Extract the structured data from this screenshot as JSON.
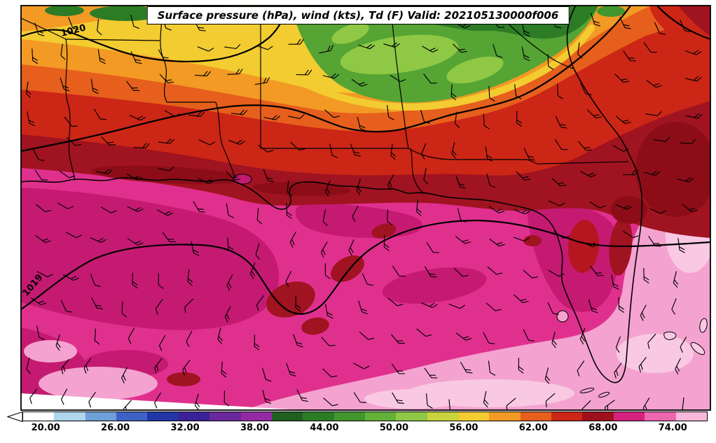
{
  "title": "Surface pressure (hPa), wind (kts), Td (F) Valid: 202105130000f006",
  "contour_labels": {
    "upper": "1020",
    "lower": "1019"
  },
  "colorbar": {
    "range": [
      18,
      77
    ],
    "ticks": [
      {
        "value": 20,
        "label": "20.00"
      },
      {
        "value": 26,
        "label": "26.00"
      },
      {
        "value": 32,
        "label": "32.00"
      },
      {
        "value": 38,
        "label": "38.00"
      },
      {
        "value": 44,
        "label": "44.00"
      },
      {
        "value": 50,
        "label": "50.00"
      },
      {
        "value": 56,
        "label": "56.00"
      },
      {
        "value": 62,
        "label": "62.00"
      },
      {
        "value": 68,
        "label": "68.00"
      },
      {
        "value": 74,
        "label": "74.00"
      }
    ],
    "colors": [
      "#ffffff",
      "#aed6ec",
      "#6f9fd8",
      "#3d62c4",
      "#2236a8",
      "#3a2396",
      "#69289c",
      "#9429a4",
      "#1f5f1f",
      "#2c7c26",
      "#42962e",
      "#63b138",
      "#8ec844",
      "#c9d33c",
      "#f2cc30",
      "#f29a24",
      "#e65f1c",
      "#cc2616",
      "#9e111c",
      "#d6217e",
      "#ee66ad",
      "#f9b8d9"
    ]
  },
  "chart_data": {
    "type": "heatmap",
    "title": "Surface pressure (hPa), wind (kts), Td (F) Valid: 202105130000f006",
    "field": "Dewpoint temperature Td (F), filled contours",
    "overlays": [
      "surface pressure isobars (hPa)",
      "wind barbs (kts)",
      "state borders and coastline"
    ],
    "region": "Southeastern United States and Gulf of Mexico (Louisiana, Mississippi, Alabama, Georgia, Florida)",
    "valid": "202105130000f006",
    "colorbar_ticks_F": [
      20,
      26,
      32,
      38,
      44,
      50,
      56,
      62,
      68,
      74
    ],
    "colorbar_range_F": [
      18,
      77
    ],
    "pressure_contour_labels_hPa": [
      1019,
      1020
    ],
    "field_summary": [
      {
        "area": "far north edge (TN valley, north GA/AL)",
        "td_F": "44-52",
        "color": "dark to mid green"
      },
      {
        "area": "central Alabama / Georgia",
        "td_F": "52-58",
        "color": "yellow to orange"
      },
      {
        "area": "inland Gulf states band (LA/MS/AL/GA)",
        "td_F": "58-66",
        "color": "red to dark red"
      },
      {
        "area": "Gulf coast, north Florida, Atlantic off GA",
        "td_F": "66-70",
        "color": "dark red / crimson"
      },
      {
        "area": "Gulf of Mexico and Florida peninsula",
        "td_F": "70-74",
        "color": "magenta"
      },
      {
        "area": "southern Gulf and Atlantic east of Florida",
        "td_F": "74+",
        "color": "light pink"
      }
    ]
  },
  "wind_barbs": {
    "color": "#000000",
    "grid_cols": 21,
    "grid_rows": 13
  }
}
